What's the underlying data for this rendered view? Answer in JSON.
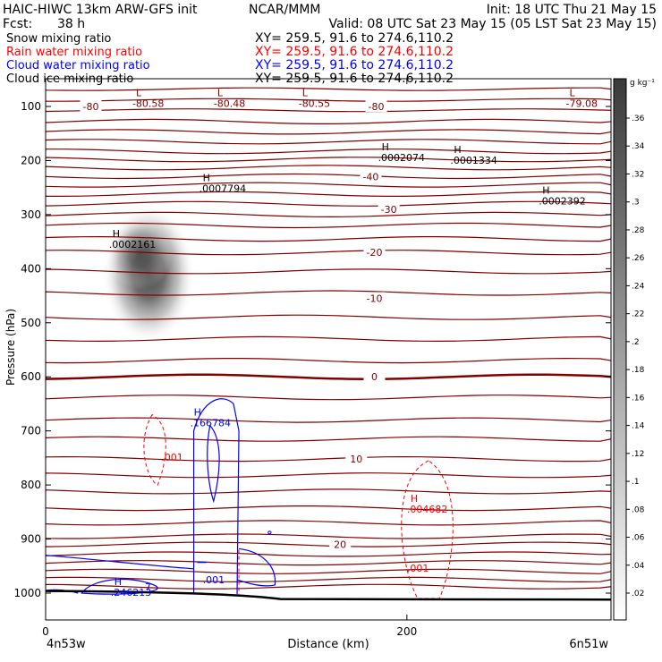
{
  "header": {
    "model": "HAIC-HIWC 13km ARW-GFS init",
    "org": "NCAR/MMM",
    "init": "Init: 18 UTC Thu 21 May 15",
    "fcst_label": "Fcst:",
    "fcst_value": "38 h",
    "valid": "Valid: 08 UTC Sat 23 May 15 (05 LST Sat 23 May 15)",
    "fields": [
      {
        "name": "Snow mixing ratio",
        "xy": "XY= 259.5, 91.6 to 274.6,110.2",
        "color": "#000000"
      },
      {
        "name": "Rain water mixing ratio",
        "xy": "XY= 259.5, 91.6 to 274.6,110.2",
        "color": "#ff0000"
      },
      {
        "name": "Cloud water mixing ratio",
        "xy": "XY= 259.5, 91.6 to 274.6,110.2",
        "color": "#0000ff"
      },
      {
        "name": "Cloud ice mixing ratio",
        "xy": "XY= 259.5, 91.6 to 274.6,110.2",
        "color": "#000000"
      }
    ]
  },
  "chart_data": {
    "type": "contour",
    "xlabel": "Distance (km)",
    "ylabel": "Pressure (hPa)",
    "x_ticks": [
      0,
      200
    ],
    "y_ticks": [
      100,
      200,
      300,
      400,
      500,
      600,
      700,
      800,
      900,
      1000
    ],
    "xlim": [
      0,
      313
    ],
    "ylim_hpa": [
      1050,
      50
    ],
    "x_end_labels": {
      "left": "4n53w",
      "right": "6n51w"
    },
    "colorbar": {
      "unit": "g kg⁻¹",
      "ticks": [
        ".02",
        ".04",
        ".06",
        ".08",
        ".1",
        ".12",
        ".14",
        ".16",
        ".18",
        ".2",
        ".22",
        ".24",
        ".26",
        ".28",
        ".3",
        ".32",
        ".34",
        ".36"
      ]
    },
    "temperature_contour_labels": [
      {
        "text": "-80",
        "x": 25,
        "p": 100
      },
      {
        "text": "-80",
        "x": 183,
        "p": 100
      },
      {
        "text": "-40",
        "x": 180,
        "p": 230
      },
      {
        "text": "-30",
        "x": 190,
        "p": 290
      },
      {
        "text": "-20",
        "x": 182,
        "p": 370
      },
      {
        "text": "-10",
        "x": 182,
        "p": 455
      },
      {
        "text": "0",
        "x": 182,
        "p": 600
      },
      {
        "text": "10",
        "x": 172,
        "p": 752
      },
      {
        "text": "20",
        "x": 163,
        "p": 910
      }
    ],
    "extrema": [
      {
        "kind": "L",
        "value": "-80.58",
        "x": 50,
        "p": 88,
        "series": "temperature"
      },
      {
        "kind": "L",
        "value": "-80.48",
        "x": 95,
        "p": 88,
        "series": "temperature"
      },
      {
        "kind": "L",
        "value": "-80.55",
        "x": 142,
        "p": 88,
        "series": "temperature"
      },
      {
        "kind": "L",
        "value": "-79.08",
        "x": 290,
        "p": 88,
        "series": "temperature"
      },
      {
        "kind": "H",
        "value": ".0002074",
        "x": 186,
        "p": 188,
        "series": "snow"
      },
      {
        "kind": "H",
        "value": ".0001334",
        "x": 226,
        "p": 193,
        "series": "snow"
      },
      {
        "kind": "H",
        "value": ".0007794",
        "x": 87,
        "p": 245,
        "series": "snow"
      },
      {
        "kind": "H",
        "value": ".0002392",
        "x": 275,
        "p": 268,
        "series": "snow"
      },
      {
        "kind": "H",
        "value": ".0002161",
        "x": 37,
        "p": 348,
        "series": "snow"
      },
      {
        "kind": "H",
        "value": ".166784",
        "x": 82,
        "p": 678,
        "series": "cloud_water"
      },
      {
        "kind": "H",
        "value": ".004682",
        "x": 202,
        "p": 838,
        "series": "rain"
      },
      {
        "kind": "H",
        "value": ".246213",
        "x": 38,
        "p": 992,
        "series": "cloud_water"
      }
    ],
    "contour_labels": [
      {
        "text": ".001",
        "x": 64,
        "p": 755,
        "series": "rain"
      },
      {
        "text": ".001",
        "x": 200,
        "p": 960,
        "series": "rain"
      },
      {
        "text": ".001",
        "x": 87,
        "p": 982,
        "series": "cloud_water"
      },
      {
        "text": "7",
        "x": 55,
        "p": 995,
        "series": "cloud_water"
      }
    ],
    "temperature_line_pressures": [
      68,
      88,
      107,
      128,
      147,
      165,
      183,
      198,
      213,
      229,
      245,
      262,
      280,
      300,
      320,
      345,
      370,
      405,
      445,
      490,
      530,
      570,
      600,
      638,
      680,
      715,
      752,
      782,
      812,
      843,
      870,
      895,
      910,
      928,
      944,
      960,
      975,
      988
    ],
    "snow_max_location": {
      "x": 57,
      "p": 410,
      "value": 0.3
    }
  }
}
